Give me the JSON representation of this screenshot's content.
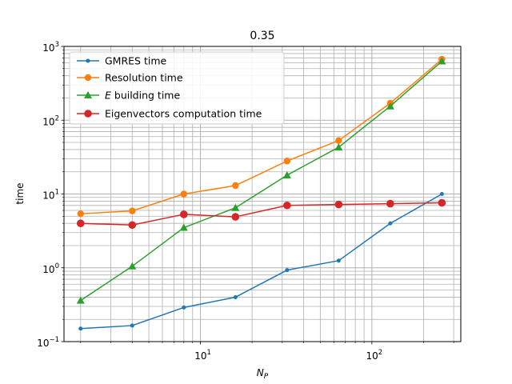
{
  "chart_data": {
    "type": "line",
    "title": "0.35",
    "xlabel_main": "N",
    "xlabel_sub": "P",
    "ylabel": "time",
    "x_scale": "log",
    "y_scale": "log",
    "xlim": [
      1.6,
      330
    ],
    "ylim": [
      0.1,
      1000
    ],
    "grid": "both major and minor",
    "legend_position": "upper-left",
    "x_ticks": [
      {
        "value": 10,
        "base": "10",
        "exp": "1"
      },
      {
        "value": 100,
        "base": "10",
        "exp": "2"
      }
    ],
    "y_ticks": [
      {
        "value": 0.1,
        "base": "10",
        "exp": "−1"
      },
      {
        "value": 1,
        "base": "10",
        "exp": "0"
      },
      {
        "value": 10,
        "base": "10",
        "exp": "1"
      },
      {
        "value": 100,
        "base": "10",
        "exp": "2"
      },
      {
        "value": 1000,
        "base": "10",
        "exp": "3"
      }
    ],
    "x": [
      2,
      4,
      8,
      16,
      32,
      64,
      128,
      256
    ],
    "series": [
      {
        "name": "GMRES time",
        "color": "#1f77b4",
        "marker": "dot",
        "values": [
          0.15,
          0.165,
          0.29,
          0.4,
          0.93,
          1.25,
          4.0,
          10.0
        ]
      },
      {
        "name": "Resolution time",
        "color": "#ff7f0e",
        "marker": "circle",
        "values": [
          5.4,
          5.9,
          10.0,
          13.0,
          28.0,
          53.0,
          170.0,
          670.0
        ]
      },
      {
        "name_main": "E",
        "name_rest": " building time",
        "color": "#2ca02c",
        "marker": "triangle",
        "values": [
          0.36,
          1.05,
          3.5,
          6.5,
          18.0,
          43.0,
          155.0,
          630.0
        ]
      },
      {
        "name": "Eigenvectors computation time",
        "color": "#d62728",
        "marker": "circle-lg",
        "values": [
          4.0,
          3.8,
          5.3,
          4.9,
          7.0,
          7.2,
          7.4,
          7.6
        ]
      }
    ]
  }
}
